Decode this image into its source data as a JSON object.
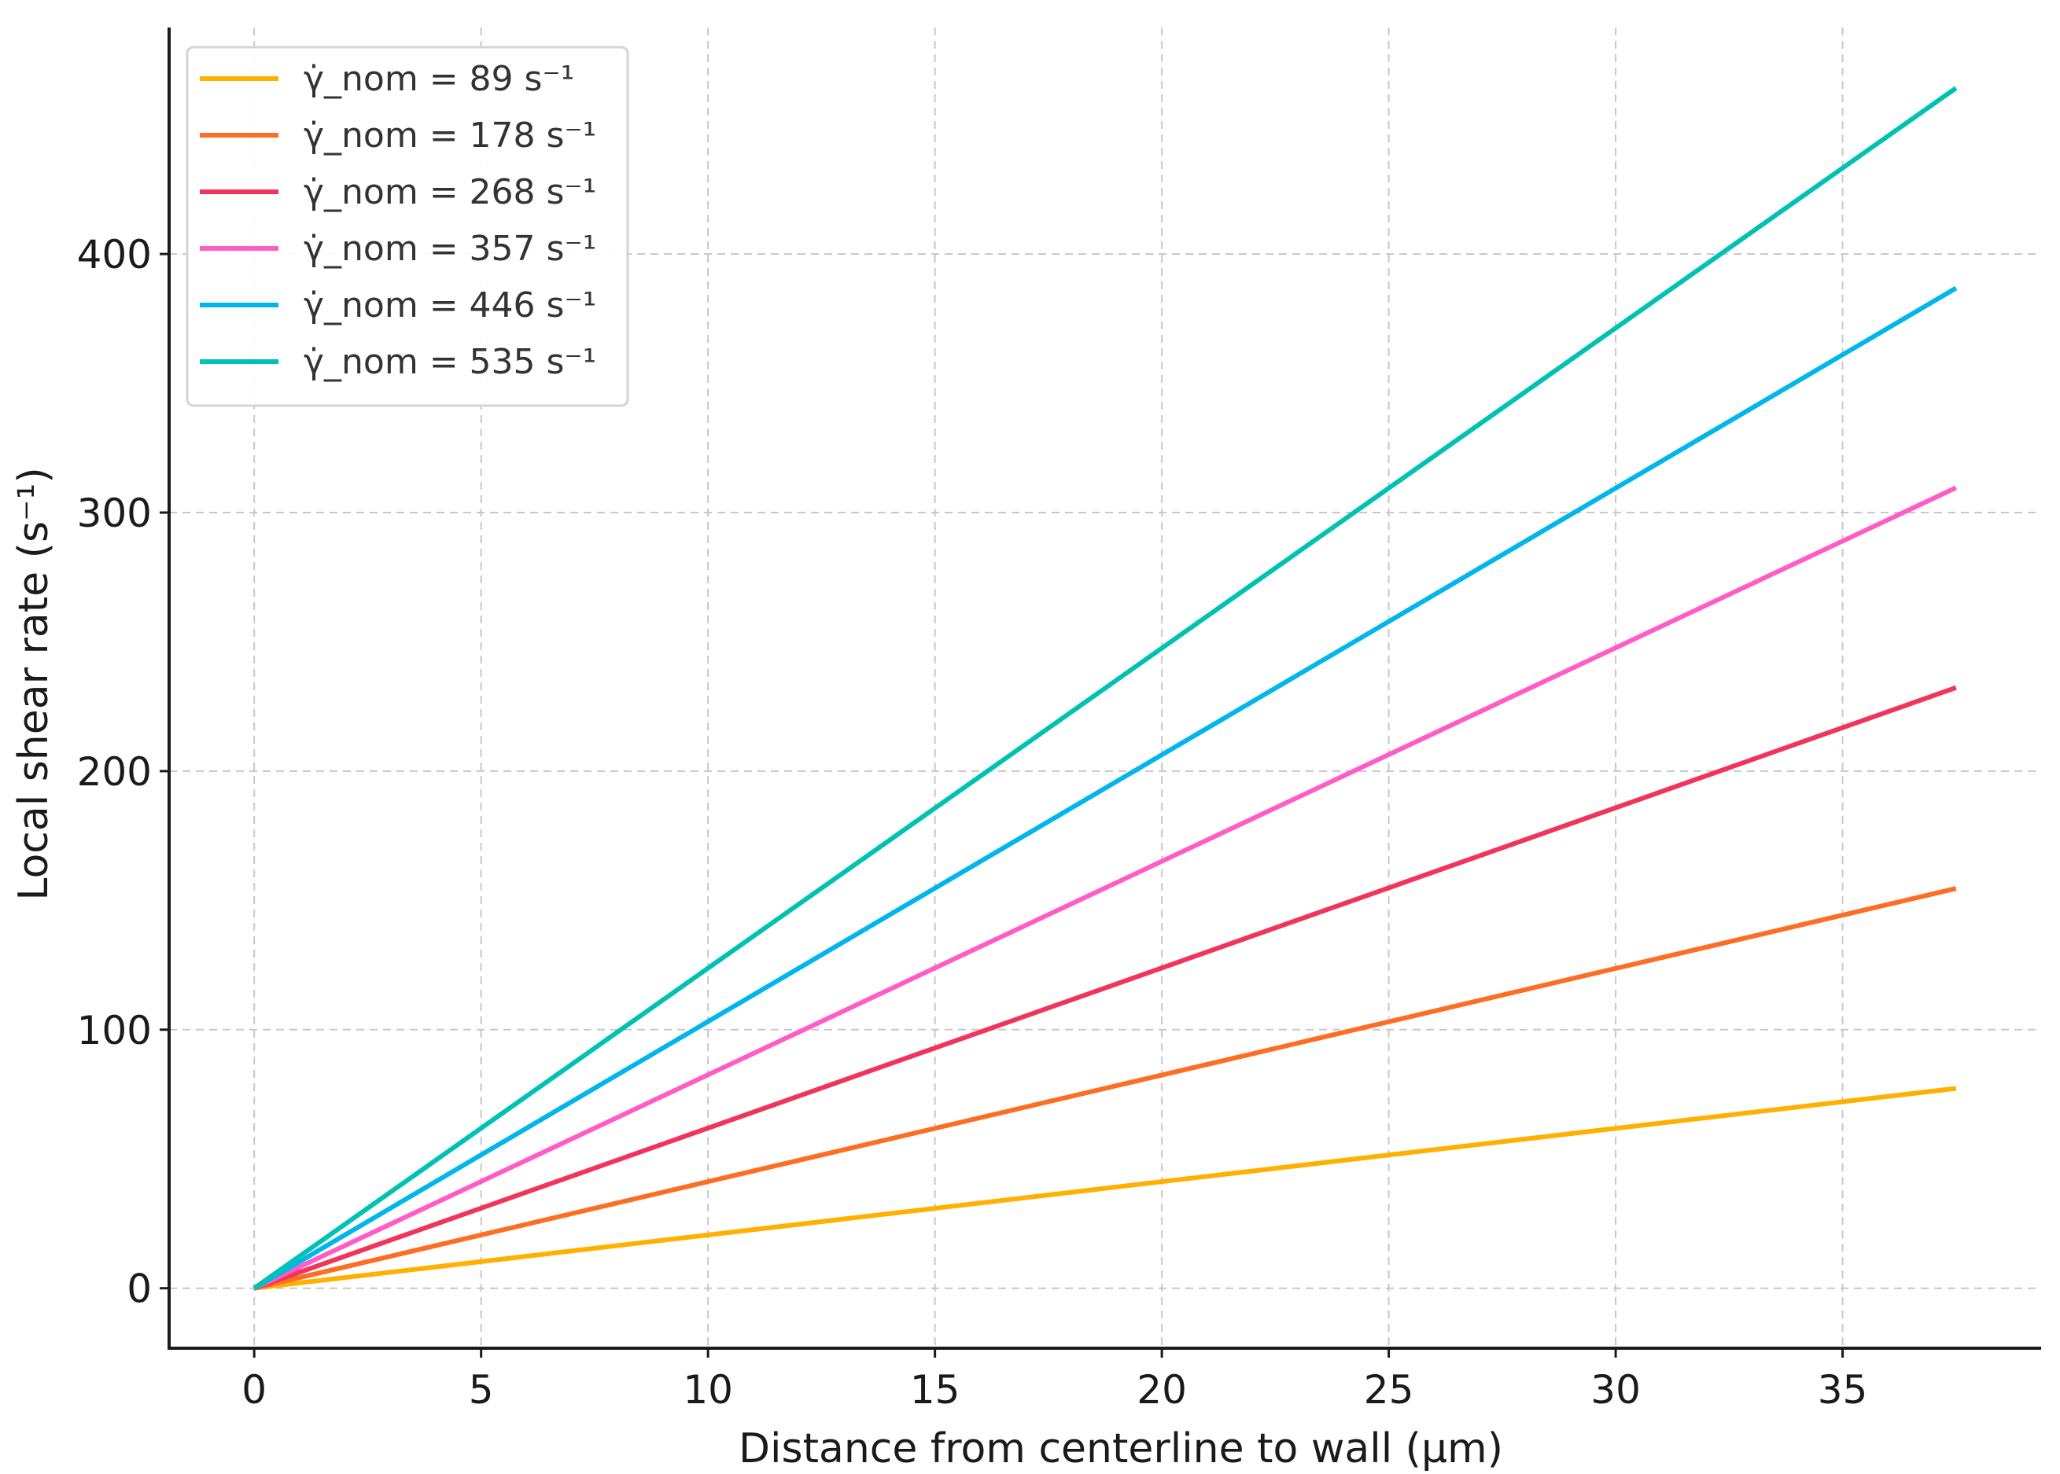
{
  "chart_data": {
    "type": "line",
    "title": "",
    "xlabel": "Distance from centerline to wall (μm)",
    "ylabel": "Local shear rate (s⁻¹)",
    "xlim": [
      -1.875,
      39.375
    ],
    "ylim": [
      -23.2,
      487.6
    ],
    "xticks": [
      0,
      5,
      10,
      15,
      20,
      25,
      30,
      35
    ],
    "yticks": [
      0,
      100,
      200,
      300,
      400
    ],
    "grid": true,
    "legend_position": "top-left",
    "x": [
      0,
      37.5
    ],
    "series": [
      {
        "name": "γ̇_nom = 89 s⁻¹",
        "color": "#FFB000",
        "values": [
          0,
          77.3
        ]
      },
      {
        "name": "γ̇_nom = 178 s⁻¹",
        "color": "#FE6D24",
        "values": [
          0,
          154.6
        ]
      },
      {
        "name": "γ̇_nom = 268 s⁻¹",
        "color": "#F2335A",
        "values": [
          0,
          232.3
        ]
      },
      {
        "name": "γ̇_nom = 357 s⁻¹",
        "color": "#FF5CC8",
        "values": [
          0,
          309.6
        ]
      },
      {
        "name": "γ̇_nom = 446 s⁻¹",
        "color": "#00B6EA",
        "values": [
          0,
          386.8
        ]
      },
      {
        "name": "γ̇_nom = 535 s⁻¹",
        "color": "#00C2B4",
        "values": [
          0,
          464.2
        ]
      }
    ]
  }
}
